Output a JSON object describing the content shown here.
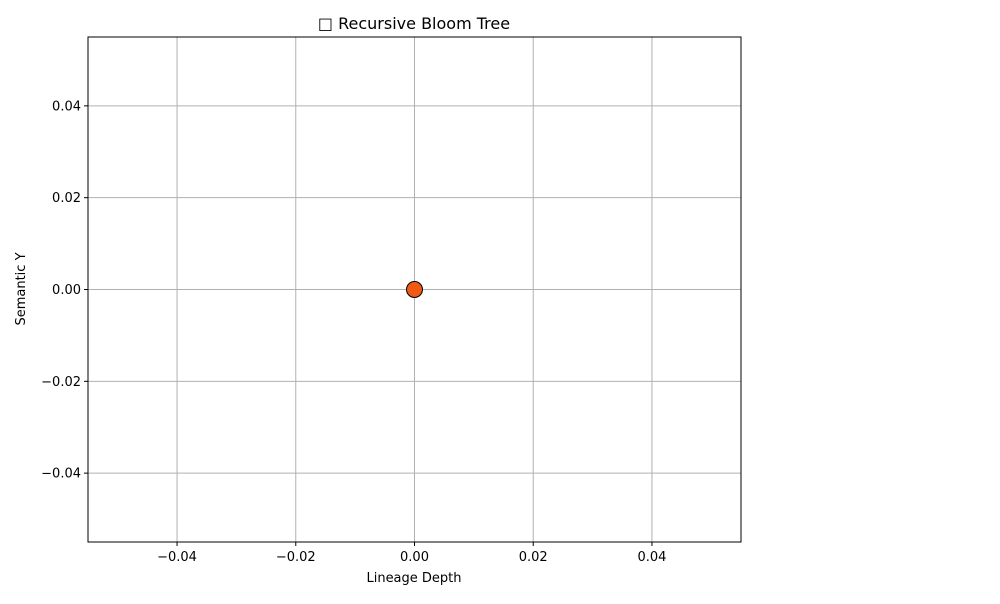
{
  "chart_data": {
    "type": "scatter",
    "title": "□ Recursive Bloom Tree",
    "xlabel": "Lineage Depth",
    "ylabel": "Semantic Y",
    "xlim": [
      -0.055,
      0.055
    ],
    "ylim": [
      -0.055,
      0.055
    ],
    "xticks": [
      -0.04,
      -0.02,
      0.0,
      0.02,
      0.04
    ],
    "yticks": [
      -0.04,
      -0.02,
      0.0,
      0.02,
      0.04
    ],
    "xtick_labels": [
      "−0.04",
      "−0.02",
      "0.00",
      "0.02",
      "0.04"
    ],
    "ytick_labels": [
      "−0.04",
      "−0.02",
      "0.00",
      "0.02",
      "0.04"
    ],
    "grid": true,
    "points": [
      {
        "x": 0.0,
        "y": 0.0,
        "color": "#f05a14"
      }
    ],
    "colors": {
      "marker_fill": "#f05a14",
      "marker_edge": "#000000",
      "grid": "#b0b0b0",
      "axes": "#000000"
    }
  }
}
